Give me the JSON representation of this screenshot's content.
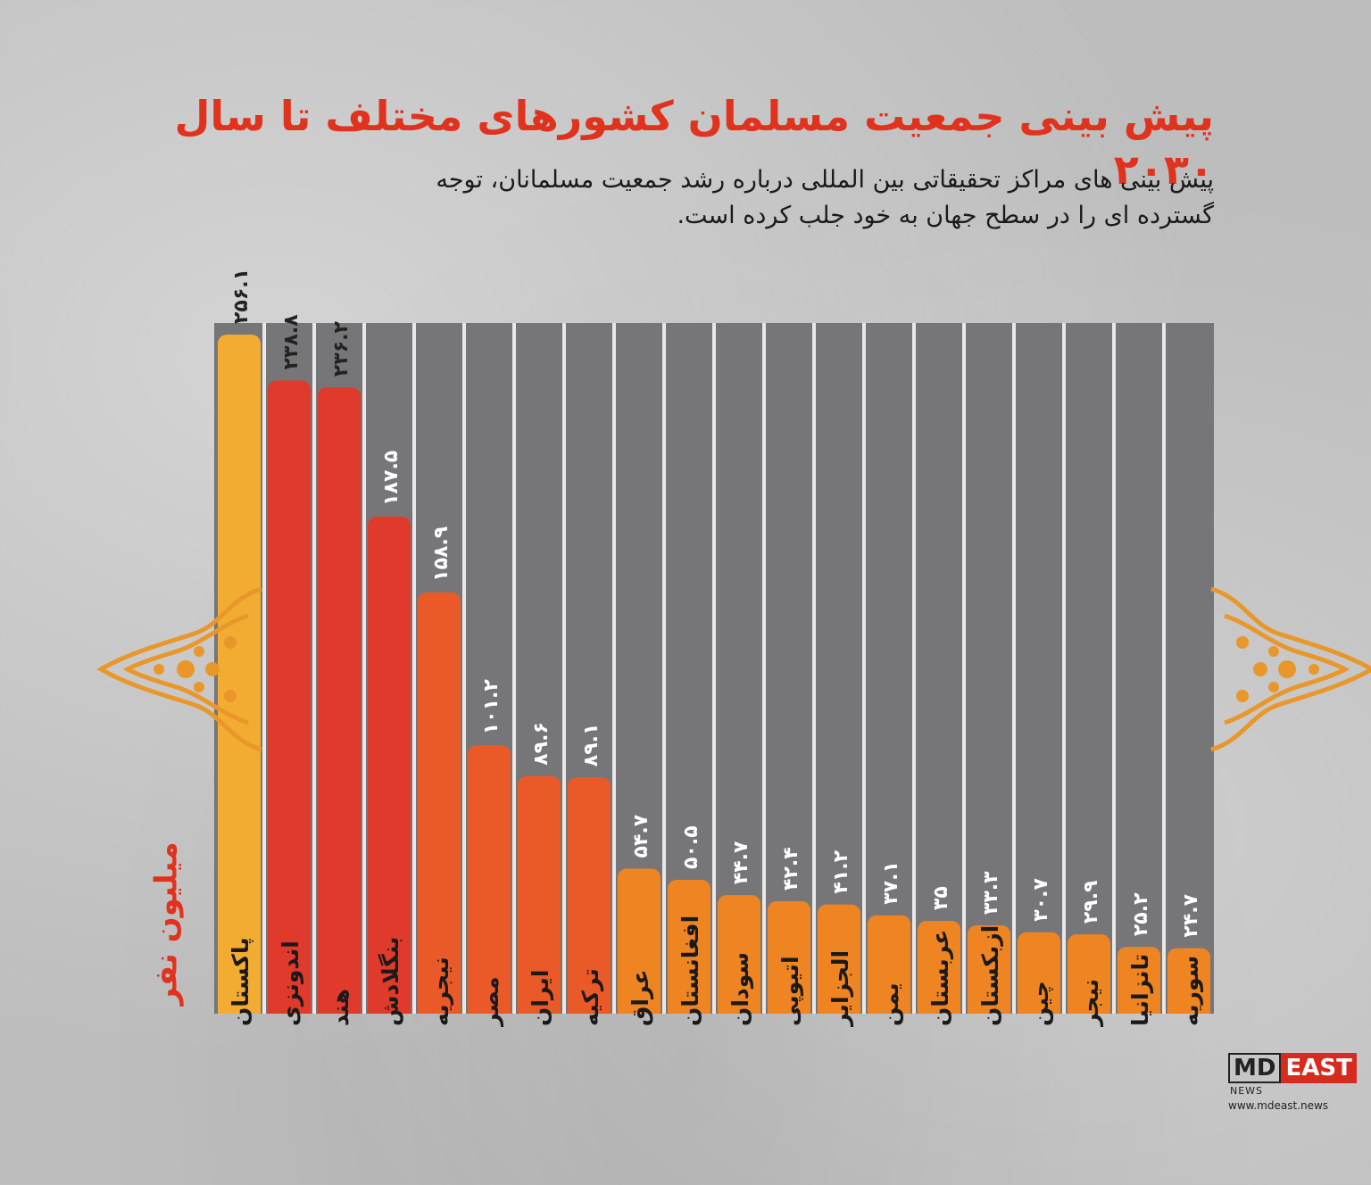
{
  "header": {
    "title": "پیش بینی جمعیت مسلمان کشورهای مختلف تا سال ۲۰۳۰",
    "subtitle_line1": "پیش بینی های مراکز تحقیقاتی بین المللی درباره رشد جمعیت مسلمانان، توجه",
    "subtitle_line2": "گسترده ای را در سطح جهان به خود جلب کرده است."
  },
  "unit_label": "میلیون نفر",
  "brand": {
    "md": "MD",
    "east": "EAST",
    "news": "NEWS",
    "url": "www.mdeast.news"
  },
  "colors": {
    "background": "#bdbdbd",
    "panel": "#767679",
    "title": "#e0321d",
    "bar_top": "#f2ac32",
    "bar_high": "#df3a2c",
    "bar_mid": "#ea5a28",
    "bar_low": "#ef8522",
    "ornament": "#e9972a"
  },
  "chart_data": {
    "type": "bar",
    "title": "پیش بینی جمعیت مسلمان کشورهای مختلف تا سال ۲۰۳۰",
    "ylabel": "میلیون نفر",
    "ylim": [
      0,
      256.1
    ],
    "grid": false,
    "categories": [
      "پاکستان",
      "اندونزی",
      "هند",
      "بنگلادش",
      "نیجریه",
      "مصر",
      "ایران",
      "ترکیه",
      "عراق",
      "افغانستان",
      "سودان",
      "اتیوپی",
      "الجزایر",
      "یمن",
      "عربستان",
      "ازبکستان",
      "چین",
      "نیجر",
      "تانزانیا",
      "سوریه"
    ],
    "values": [
      256.1,
      238.8,
      236.2,
      187.5,
      158.9,
      101.2,
      89.6,
      89.1,
      54.7,
      50.5,
      44.7,
      42.4,
      41.2,
      37.1,
      35,
      33.3,
      30.7,
      29.9,
      25.2,
      24.7
    ],
    "value_labels": [
      "۲۵۶.۱",
      "۲۳۸.۸",
      "۲۳۶.۲",
      "۱۸۷.۵",
      "۱۵۸.۹",
      "۱۰۱.۲",
      "۸۹.۶",
      "۸۹.۱",
      "۵۴.۷",
      "۵۰.۵",
      "۴۴.۷",
      "۴۲.۴",
      "۴۱.۲",
      "۳۷.۱",
      "۳۵",
      "۳۳.۳",
      "۳۰.۷",
      "۲۹.۹",
      "۲۵.۲",
      "۲۴.۷"
    ]
  }
}
